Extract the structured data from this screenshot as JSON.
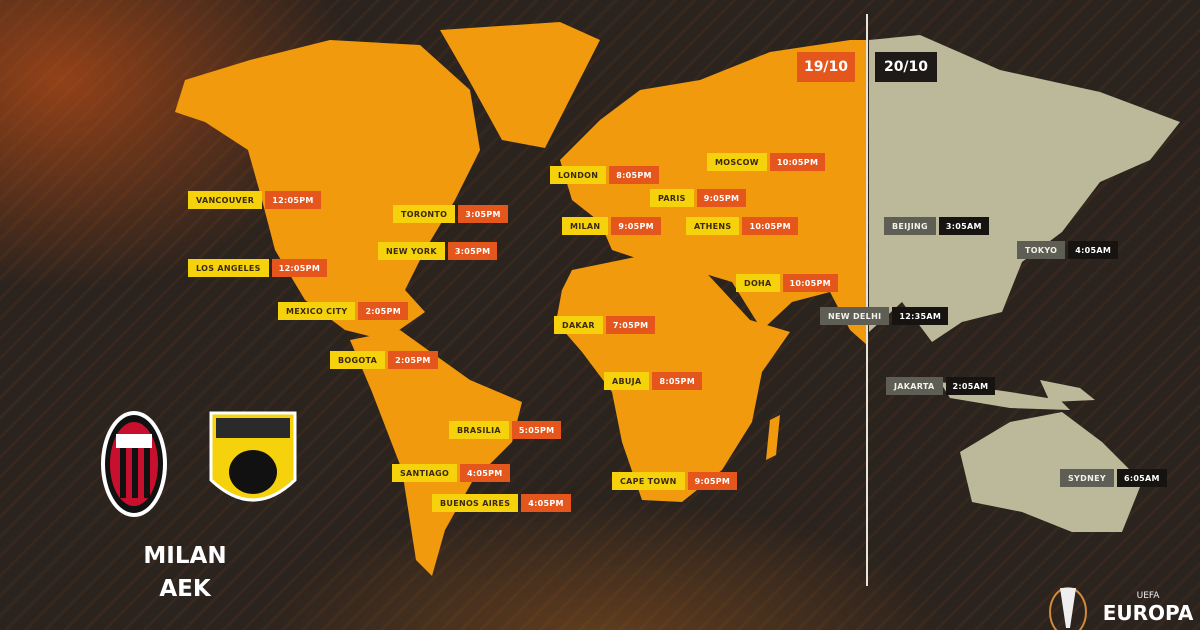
{
  "dates": {
    "day1": "19/10",
    "day2": "20/10"
  },
  "match": {
    "home": "MILAN",
    "away": "AEK"
  },
  "colors": {
    "land_day1": "#f29a0e",
    "land_day2": "#bcb99a",
    "city_day1": "#f6d20c",
    "time_day1": "#e4561c",
    "city_day2": "#5e5e54",
    "time_day2": "#161311"
  },
  "cities_day1": [
    {
      "city": "VANCOUVER",
      "time": "12:05PM"
    },
    {
      "city": "TORONTO",
      "time": "3:05PM"
    },
    {
      "city": "NEW YORK",
      "time": "3:05PM"
    },
    {
      "city": "LOS ANGELES",
      "time": "12:05PM"
    },
    {
      "city": "MEXICO CITY",
      "time": "2:05PM"
    },
    {
      "city": "BOGOTA",
      "time": "2:05PM"
    },
    {
      "city": "LONDON",
      "time": "8:05PM"
    },
    {
      "city": "MOSCOW",
      "time": "10:05PM"
    },
    {
      "city": "PARIS",
      "time": "9:05PM"
    },
    {
      "city": "MILAN",
      "time": "9:05PM"
    },
    {
      "city": "ATHENS",
      "time": "10:05PM"
    },
    {
      "city": "DOHA",
      "time": "10:05PM"
    },
    {
      "city": "DAKAR",
      "time": "7:05PM"
    },
    {
      "city": "ABUJA",
      "time": "8:05PM"
    },
    {
      "city": "BRASILIA",
      "time": "5:05PM"
    },
    {
      "city": "SANTIAGO",
      "time": "4:05PM"
    },
    {
      "city": "BUENOS AIRES",
      "time": "4:05PM"
    },
    {
      "city": "CAPE TOWN",
      "time": "9:05PM"
    }
  ],
  "cities_day2": [
    {
      "city": "NEW DELHI",
      "time": "12:35AM"
    },
    {
      "city": "BEIJING",
      "time": "3:05AM"
    },
    {
      "city": "TOKYO",
      "time": "4:05AM"
    },
    {
      "city": "JAKARTA",
      "time": "2:05AM"
    },
    {
      "city": "SYDNEY",
      "time": "6:05AM"
    }
  ],
  "logos": {
    "milan": "ACM 1899",
    "aek": "ΑΕΚ",
    "competition": "UEFA EUROPA LEAGUE"
  }
}
